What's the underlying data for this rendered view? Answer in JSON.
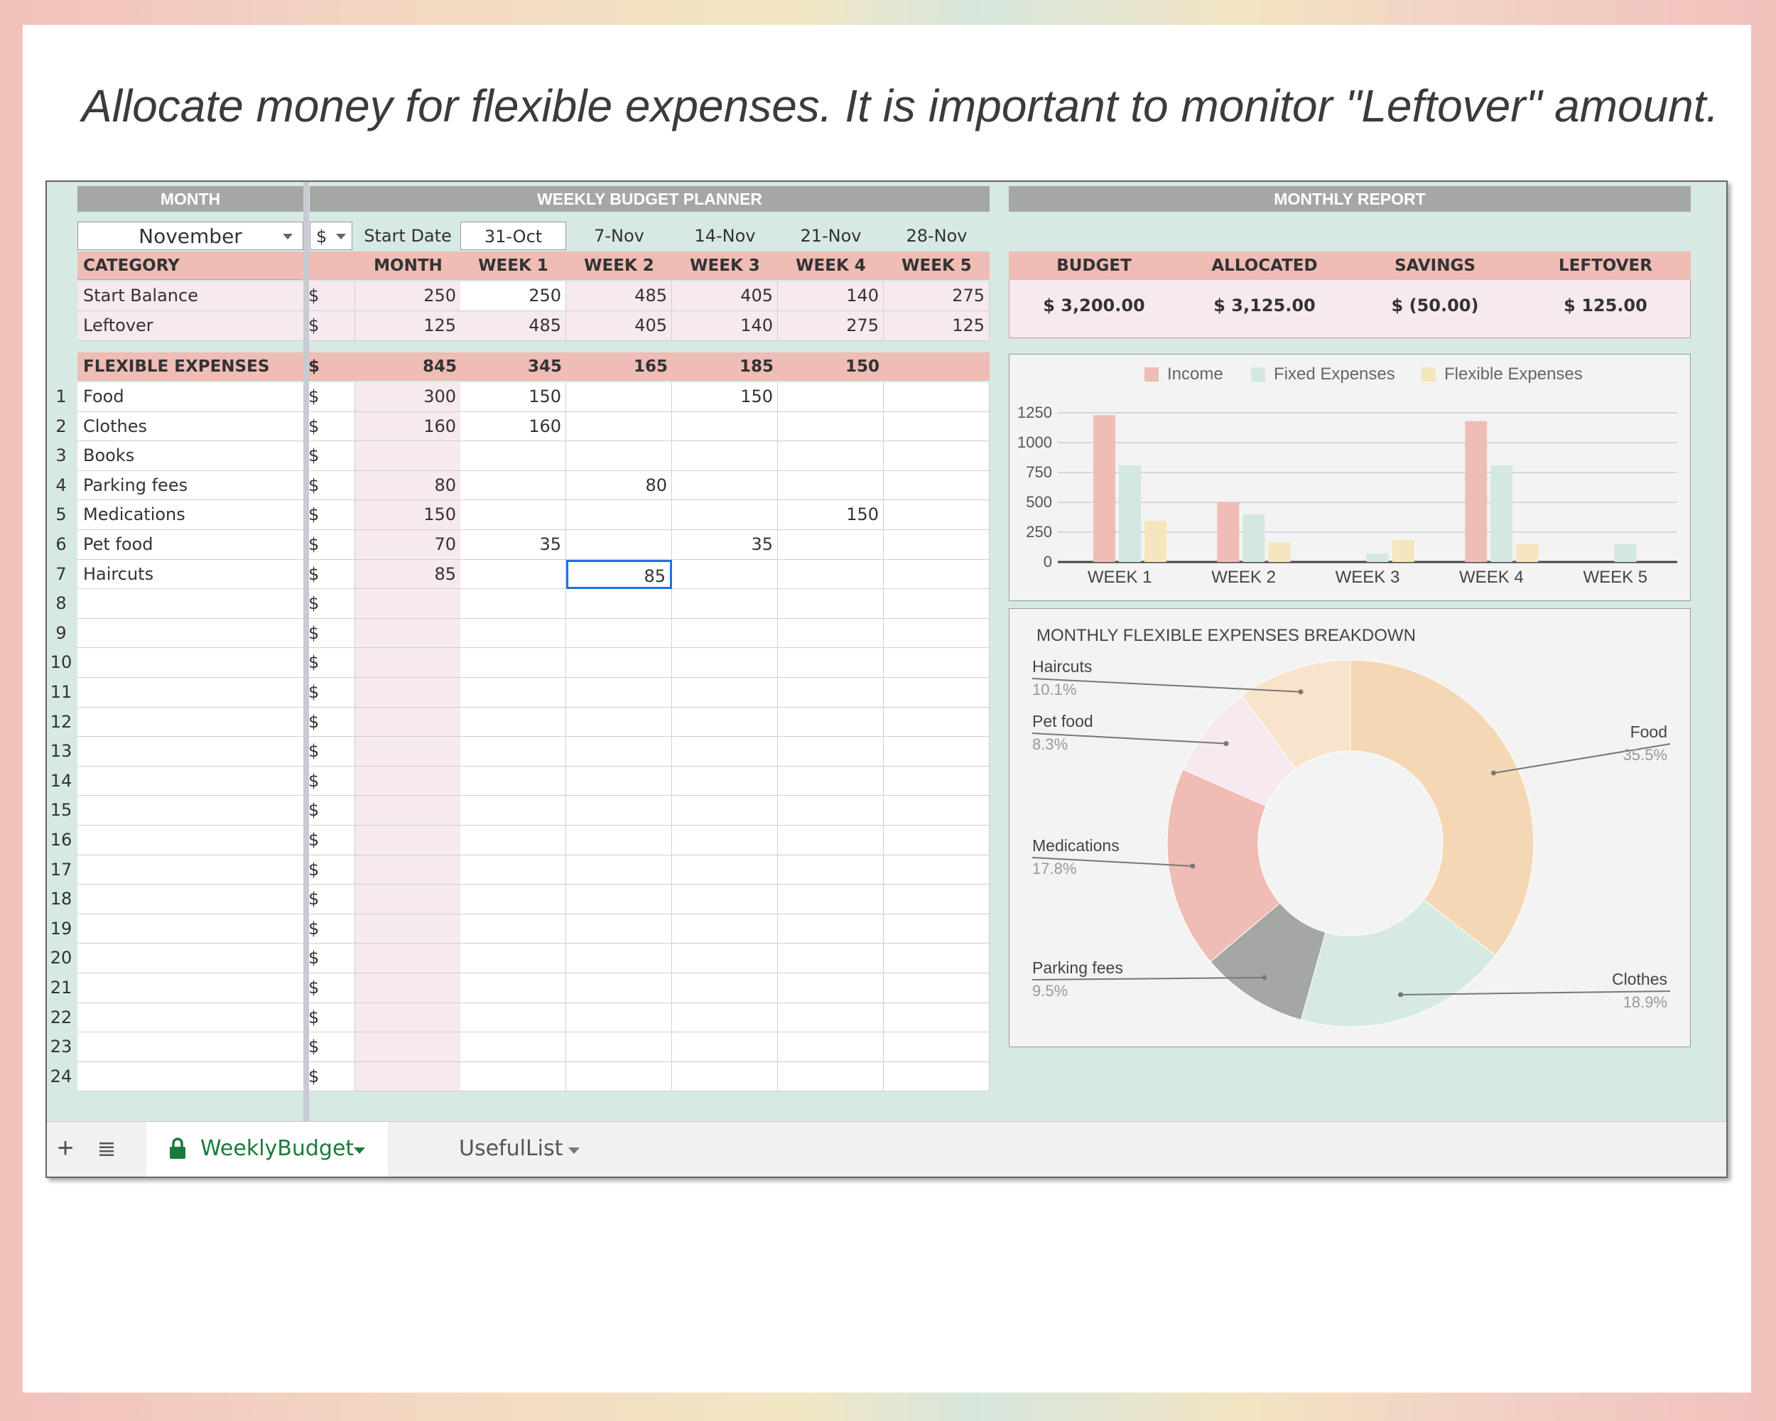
{
  "headline": "Allocate money for flexible expenses. It is important to monitor \"Leftover\" amount.",
  "headers": {
    "month": "MONTH",
    "planner": "WEEKLY BUDGET PLANNER",
    "report": "MONTHLY REPORT"
  },
  "month_select": {
    "value": "November",
    "currency": "$"
  },
  "start_date": {
    "label": "Start Date",
    "dates": [
      "31-Oct",
      "7-Nov",
      "14-Nov",
      "21-Nov",
      "28-Nov"
    ]
  },
  "category_header": {
    "category": "CATEGORY",
    "columns": [
      "MONTH",
      "WEEK 1",
      "WEEK 2",
      "WEEK 3",
      "WEEK 4",
      "WEEK 5"
    ]
  },
  "summary_rows": [
    {
      "label": "Start Balance",
      "cur": "$",
      "values": [
        "250",
        "250",
        "485",
        "405",
        "140",
        "275"
      ]
    },
    {
      "label": "Leftover",
      "cur": "$",
      "values": [
        "125",
        "485",
        "405",
        "140",
        "275",
        "125"
      ]
    }
  ],
  "report": {
    "headers": [
      "BUDGET",
      "ALLOCATED",
      "SAVINGS",
      "LEFTOVER"
    ],
    "values": [
      "$  3,200.00",
      "$  3,125.00",
      "$  (50.00)",
      "$  125.00"
    ]
  },
  "flex_header": {
    "label": "FLEXIBLE EXPENSES",
    "cur": "$",
    "values": [
      "845",
      "345",
      "165",
      "185",
      "150",
      ""
    ]
  },
  "expenses": [
    {
      "num": "1",
      "label": "Food",
      "cur": "$",
      "values": [
        "300",
        "150",
        "",
        "150",
        "",
        ""
      ]
    },
    {
      "num": "2",
      "label": "Clothes",
      "cur": "$",
      "values": [
        "160",
        "160",
        "",
        "",
        "",
        ""
      ]
    },
    {
      "num": "3",
      "label": "Books",
      "cur": "$",
      "values": [
        "",
        "",
        "",
        "",
        "",
        ""
      ]
    },
    {
      "num": "4",
      "label": "Parking fees",
      "cur": "$",
      "values": [
        "80",
        "",
        "80",
        "",
        "",
        ""
      ]
    },
    {
      "num": "5",
      "label": "Medications",
      "cur": "$",
      "values": [
        "150",
        "",
        "",
        "",
        "150",
        ""
      ]
    },
    {
      "num": "6",
      "label": "Pet food",
      "cur": "$",
      "values": [
        "70",
        "35",
        "",
        "35",
        "",
        ""
      ]
    },
    {
      "num": "7",
      "label": "Haircuts",
      "cur": "$",
      "values": [
        "85",
        "",
        "85",
        "",
        "",
        ""
      ]
    },
    {
      "num": "8",
      "label": "",
      "cur": "$",
      "values": [
        "",
        "",
        "",
        "",
        "",
        ""
      ]
    },
    {
      "num": "9",
      "label": "",
      "cur": "$",
      "values": [
        "",
        "",
        "",
        "",
        "",
        ""
      ]
    },
    {
      "num": "10",
      "label": "",
      "cur": "$",
      "values": [
        "",
        "",
        "",
        "",
        "",
        ""
      ]
    },
    {
      "num": "11",
      "label": "",
      "cur": "$",
      "values": [
        "",
        "",
        "",
        "",
        "",
        ""
      ]
    },
    {
      "num": "12",
      "label": "",
      "cur": "$",
      "values": [
        "",
        "",
        "",
        "",
        "",
        ""
      ]
    },
    {
      "num": "13",
      "label": "",
      "cur": "$",
      "values": [
        "",
        "",
        "",
        "",
        "",
        ""
      ]
    },
    {
      "num": "14",
      "label": "",
      "cur": "$",
      "values": [
        "",
        "",
        "",
        "",
        "",
        ""
      ]
    },
    {
      "num": "15",
      "label": "",
      "cur": "$",
      "values": [
        "",
        "",
        "",
        "",
        "",
        ""
      ]
    },
    {
      "num": "16",
      "label": "",
      "cur": "$",
      "values": [
        "",
        "",
        "",
        "",
        "",
        ""
      ]
    },
    {
      "num": "17",
      "label": "",
      "cur": "$",
      "values": [
        "",
        "",
        "",
        "",
        "",
        ""
      ]
    },
    {
      "num": "18",
      "label": "",
      "cur": "$",
      "values": [
        "",
        "",
        "",
        "",
        "",
        ""
      ]
    },
    {
      "num": "19",
      "label": "",
      "cur": "$",
      "values": [
        "",
        "",
        "",
        "",
        "",
        ""
      ]
    },
    {
      "num": "20",
      "label": "",
      "cur": "$",
      "values": [
        "",
        "",
        "",
        "",
        "",
        ""
      ]
    },
    {
      "num": "21",
      "label": "",
      "cur": "$",
      "values": [
        "",
        "",
        "",
        "",
        "",
        ""
      ]
    },
    {
      "num": "22",
      "label": "",
      "cur": "$",
      "values": [
        "",
        "",
        "",
        "",
        "",
        ""
      ]
    },
    {
      "num": "23",
      "label": "",
      "cur": "$",
      "values": [
        "",
        "",
        "",
        "",
        "",
        ""
      ]
    },
    {
      "num": "24",
      "label": "",
      "cur": "$",
      "values": [
        "",
        "",
        "",
        "",
        "",
        ""
      ]
    }
  ],
  "tabs": {
    "add_icon": "plus-icon",
    "menu_icon": "list-icon",
    "active": {
      "label": "WeeklyBudget",
      "icon": "lock-icon"
    },
    "other": {
      "label": "UsefulList"
    }
  },
  "colors": {
    "income": "#efbcb6",
    "fixed": "#d3e8df",
    "flexible": "#f6e6bd",
    "header_grey": "#a5a7a5",
    "header_pink": "#efbcb6",
    "sheet_bg": "#d6e9e2"
  },
  "chart_data": [
    {
      "type": "bar",
      "title": "",
      "categories": [
        "WEEK 1",
        "WEEK 2",
        "WEEK 3",
        "WEEK 4",
        "WEEK 5"
      ],
      "series": [
        {
          "name": "Income",
          "color": "#efbcb6",
          "values": [
            1230,
            500,
            0,
            1180,
            0
          ]
        },
        {
          "name": "Fixed Expenses",
          "color": "#d3e8df",
          "values": [
            810,
            400,
            70,
            810,
            150
          ]
        },
        {
          "name": "Flexible Expenses",
          "color": "#f6e6bd",
          "values": [
            345,
            165,
            185,
            150,
            0
          ]
        }
      ],
      "yticks": [
        "0",
        "250",
        "500",
        "750",
        "1000",
        "1250"
      ],
      "ylim": [
        0,
        1250
      ],
      "legend": "top"
    },
    {
      "type": "pie",
      "title": "MONTHLY FLEXIBLE EXPENSES BREAKDOWN",
      "slices": [
        {
          "name": "Food",
          "pct": "35.5%",
          "value": 35.5,
          "color": "#f4d7b4"
        },
        {
          "name": "Clothes",
          "pct": "18.9%",
          "value": 18.9,
          "color": "#d6e9e2"
        },
        {
          "name": "Parking fees",
          "pct": "9.5%",
          "value": 9.5,
          "color": "#a5a7a5"
        },
        {
          "name": "Medications",
          "pct": "17.8%",
          "value": 17.8,
          "color": "#efbcb6"
        },
        {
          "name": "Pet food",
          "pct": "8.3%",
          "value": 8.3,
          "color": "#f6e9ef"
        },
        {
          "name": "Haircuts",
          "pct": "10.1%",
          "value": 10.1,
          "color": "#f8e4cc"
        }
      ]
    }
  ]
}
